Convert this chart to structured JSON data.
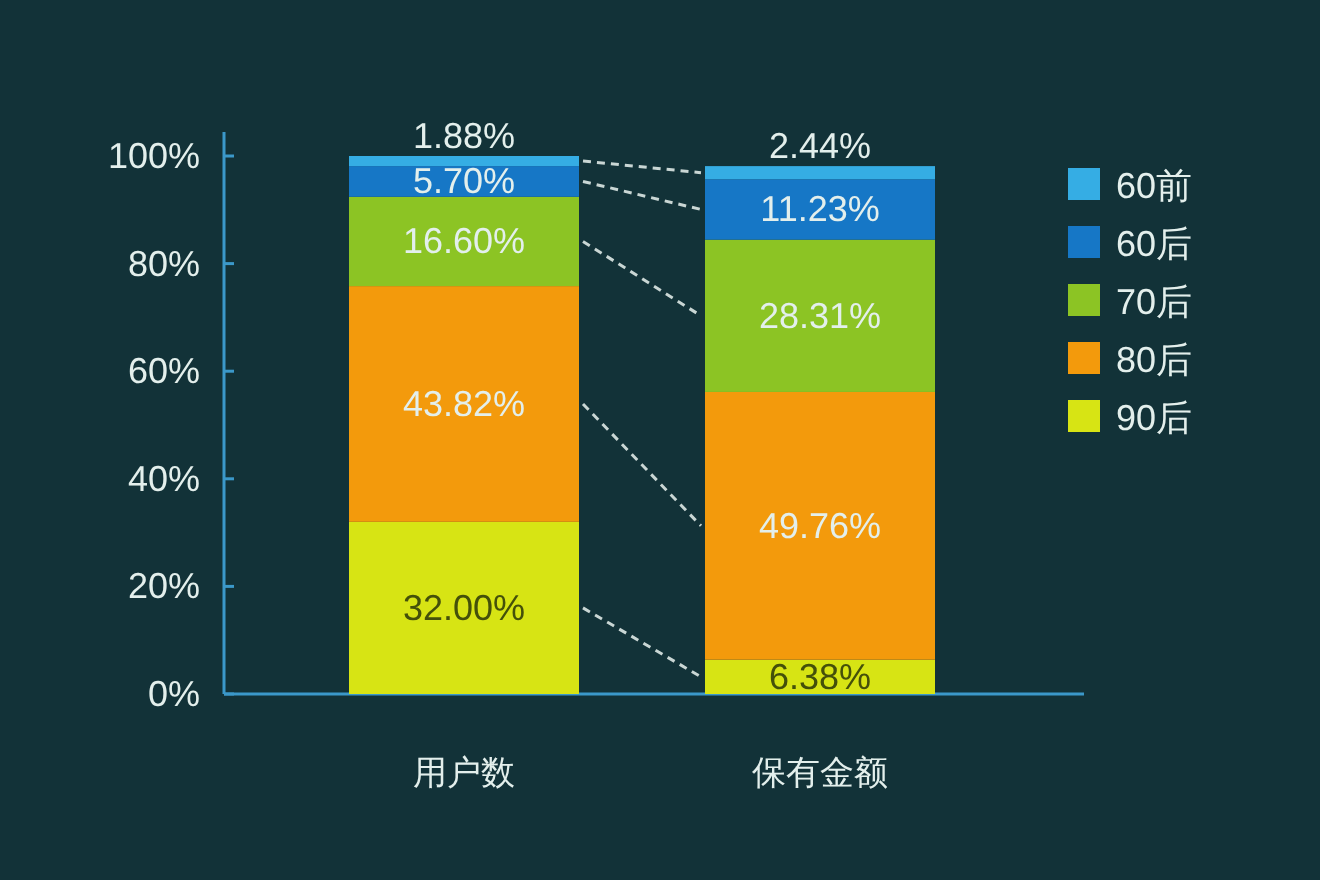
{
  "chart_data": {
    "type": "bar",
    "stacked": true,
    "categories": [
      "用户数",
      "保有金额"
    ],
    "series": [
      {
        "name": "90后",
        "color": "#d7e414",
        "values": [
          32.0,
          6.38
        ],
        "value_labels": [
          "32.00%",
          "6.38%"
        ]
      },
      {
        "name": "80后",
        "color": "#f39a0c",
        "values": [
          43.82,
          49.76
        ],
        "value_labels": [
          "43.82%",
          "49.76%"
        ]
      },
      {
        "name": "70后",
        "color": "#8cc424",
        "values": [
          16.6,
          28.31
        ],
        "value_labels": [
          "16.60%",
          "28.31%"
        ]
      },
      {
        "name": "60后",
        "color": "#1677c6",
        "values": [
          5.7,
          11.23
        ],
        "value_labels": [
          "5.70%",
          "11.23%"
        ]
      },
      {
        "name": "60前",
        "color": "#35ade4",
        "values": [
          1.88,
          2.44
        ],
        "value_labels": [
          "1.88%",
          "2.44%"
        ]
      }
    ],
    "ylim": [
      0,
      100
    ],
    "yticks": [
      {
        "value": 0,
        "label": "0%"
      },
      {
        "value": 20,
        "label": "20%"
      },
      {
        "value": 40,
        "label": "40%"
      },
      {
        "value": 60,
        "label": "60%"
      },
      {
        "value": 80,
        "label": "80%"
      },
      {
        "value": 100,
        "label": "100%"
      }
    ],
    "legend": "right"
  }
}
